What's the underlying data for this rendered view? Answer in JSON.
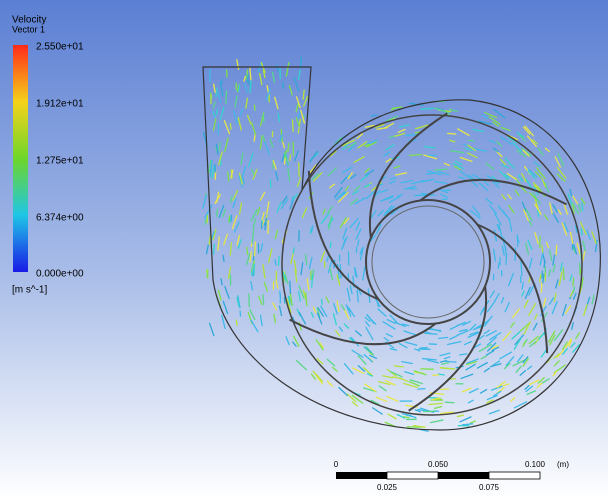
{
  "legend": {
    "title": "Velocity",
    "subtitle": "Vector 1",
    "labels": [
      "2.550e+01",
      "1.912e+01",
      "1.275e+01",
      "6.374e+00",
      "0.000e+00"
    ],
    "unit": "[m s^-1]"
  },
  "scale_bar": {
    "top_labels": [
      "0",
      "0.050",
      "0.100",
      "(m)"
    ],
    "bottom_labels": [
      "0.025",
      "0.075"
    ]
  }
}
